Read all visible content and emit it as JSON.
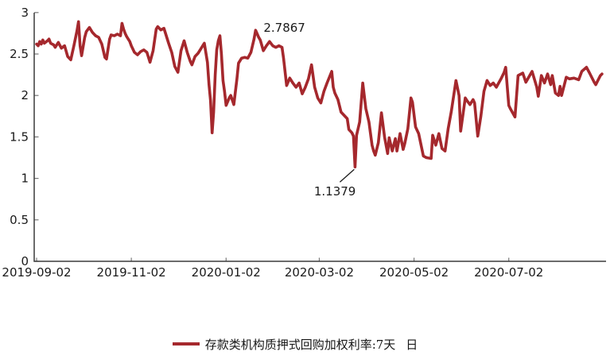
{
  "chart_data": {
    "type": "line",
    "title": "",
    "grid": false,
    "background": "#ffffff",
    "axis_color": "#3a3a3a",
    "tick_color": "#777777",
    "label_color": "#1a1a1a",
    "x_axis": {
      "tick_labels": [
        "2019-09-02",
        "2019-11-02",
        "2020-01-02",
        "2020-03-02",
        "2020-05-02",
        "2020-07-02"
      ],
      "tick_days": [
        0,
        61,
        122,
        182,
        243,
        304
      ],
      "range_days": [
        0,
        366
      ]
    },
    "y_axis": {
      "tick_labels": [
        "0",
        "0.5",
        "1",
        "1.5",
        "2",
        "2.5",
        "3"
      ],
      "ticks": [
        0,
        0.5,
        1,
        1.5,
        2,
        2.5,
        3
      ],
      "lim": [
        0,
        3
      ]
    },
    "series": [
      {
        "name": "存款类机构质押式回购加权利率:7天",
        "frequency": "日",
        "color": "#A5282D",
        "points": [
          [
            0,
            2.62
          ],
          [
            1,
            2.6
          ],
          [
            2,
            2.65
          ],
          [
            3,
            2.62
          ],
          [
            4,
            2.67
          ],
          [
            5,
            2.63
          ],
          [
            7,
            2.66
          ],
          [
            8,
            2.68
          ],
          [
            9,
            2.63
          ],
          [
            11,
            2.61
          ],
          [
            12,
            2.58
          ],
          [
            14,
            2.64
          ],
          [
            16,
            2.57
          ],
          [
            18,
            2.6
          ],
          [
            20,
            2.47
          ],
          [
            22,
            2.43
          ],
          [
            24,
            2.6
          ],
          [
            26,
            2.78
          ],
          [
            27,
            2.89
          ],
          [
            28,
            2.6
          ],
          [
            29,
            2.48
          ],
          [
            31,
            2.7
          ],
          [
            32,
            2.77
          ],
          [
            34,
            2.82
          ],
          [
            36,
            2.76
          ],
          [
            38,
            2.72
          ],
          [
            40,
            2.7
          ],
          [
            42,
            2.62
          ],
          [
            44,
            2.46
          ],
          [
            45,
            2.44
          ],
          [
            47,
            2.68
          ],
          [
            48,
            2.73
          ],
          [
            50,
            2.72
          ],
          [
            52,
            2.74
          ],
          [
            54,
            2.72
          ],
          [
            55,
            2.87
          ],
          [
            56,
            2.8
          ],
          [
            57,
            2.75
          ],
          [
            58,
            2.71
          ],
          [
            60,
            2.65
          ],
          [
            61,
            2.6
          ],
          [
            63,
            2.52
          ],
          [
            65,
            2.49
          ],
          [
            67,
            2.53
          ],
          [
            69,
            2.55
          ],
          [
            71,
            2.52
          ],
          [
            73,
            2.4
          ],
          [
            75,
            2.54
          ],
          [
            77,
            2.8
          ],
          [
            78,
            2.83
          ],
          [
            80,
            2.79
          ],
          [
            82,
            2.81
          ],
          [
            85,
            2.63
          ],
          [
            87,
            2.52
          ],
          [
            89,
            2.35
          ],
          [
            91,
            2.28
          ],
          [
            93,
            2.54
          ],
          [
            95,
            2.66
          ],
          [
            97,
            2.52
          ],
          [
            99,
            2.41
          ],
          [
            100,
            2.37
          ],
          [
            102,
            2.47
          ],
          [
            104,
            2.51
          ],
          [
            106,
            2.57
          ],
          [
            108,
            2.63
          ],
          [
            110,
            2.4
          ],
          [
            111,
            2.13
          ],
          [
            112,
            1.94
          ],
          [
            113,
            1.55
          ],
          [
            114,
            1.8
          ],
          [
            115,
            2.25
          ],
          [
            116,
            2.55
          ],
          [
            117,
            2.66
          ],
          [
            118,
            2.72
          ],
          [
            119,
            2.5
          ],
          [
            120,
            2.18
          ],
          [
            121,
            2.05
          ],
          [
            122,
            1.88
          ],
          [
            124,
            1.97
          ],
          [
            125,
            2.0
          ],
          [
            127,
            1.89
          ],
          [
            129,
            2.2
          ],
          [
            130,
            2.39
          ],
          [
            132,
            2.45
          ],
          [
            134,
            2.46
          ],
          [
            136,
            2.45
          ],
          [
            138,
            2.52
          ],
          [
            140,
            2.68
          ],
          [
            141,
            2.7867
          ],
          [
            143,
            2.7
          ],
          [
            144,
            2.67
          ],
          [
            146,
            2.54
          ],
          [
            148,
            2.6
          ],
          [
            150,
            2.65
          ],
          [
            152,
            2.6
          ],
          [
            154,
            2.58
          ],
          [
            156,
            2.6
          ],
          [
            158,
            2.58
          ],
          [
            159,
            2.45
          ],
          [
            161,
            2.12
          ],
          [
            163,
            2.21
          ],
          [
            165,
            2.15
          ],
          [
            167,
            2.1
          ],
          [
            169,
            2.15
          ],
          [
            171,
            2.02
          ],
          [
            173,
            2.1
          ],
          [
            175,
            2.2
          ],
          [
            177,
            2.37
          ],
          [
            179,
            2.1
          ],
          [
            181,
            1.97
          ],
          [
            183,
            1.91
          ],
          [
            185,
            2.05
          ],
          [
            187,
            2.15
          ],
          [
            190,
            2.29
          ],
          [
            191,
            2.1
          ],
          [
            192,
            2.03
          ],
          [
            194,
            1.95
          ],
          [
            196,
            1.8
          ],
          [
            200,
            1.72
          ],
          [
            201,
            1.59
          ],
          [
            203,
            1.55
          ],
          [
            204,
            1.51
          ],
          [
            205,
            1.1379
          ],
          [
            206,
            1.52
          ],
          [
            208,
            1.68
          ],
          [
            210,
            2.15
          ],
          [
            212,
            1.84
          ],
          [
            214,
            1.68
          ],
          [
            216,
            1.4
          ],
          [
            217,
            1.33
          ],
          [
            218,
            1.28
          ],
          [
            220,
            1.43
          ],
          [
            222,
            1.79
          ],
          [
            224,
            1.5
          ],
          [
            226,
            1.3
          ],
          [
            227,
            1.49
          ],
          [
            229,
            1.33
          ],
          [
            231,
            1.48
          ],
          [
            232,
            1.33
          ],
          [
            234,
            1.54
          ],
          [
            236,
            1.35
          ],
          [
            237,
            1.42
          ],
          [
            239,
            1.6
          ],
          [
            241,
            1.97
          ],
          [
            242,
            1.92
          ],
          [
            244,
            1.62
          ],
          [
            246,
            1.54
          ],
          [
            249,
            1.27
          ],
          [
            251,
            1.25
          ],
          [
            254,
            1.24
          ],
          [
            255,
            1.52
          ],
          [
            257,
            1.4
          ],
          [
            259,
            1.54
          ],
          [
            261,
            1.36
          ],
          [
            263,
            1.33
          ],
          [
            265,
            1.6
          ],
          [
            267,
            1.81
          ],
          [
            270,
            2.18
          ],
          [
            272,
            2.0
          ],
          [
            273,
            1.57
          ],
          [
            276,
            1.97
          ],
          [
            277,
            1.94
          ],
          [
            279,
            1.89
          ],
          [
            281,
            1.95
          ],
          [
            282,
            1.91
          ],
          [
            284,
            1.51
          ],
          [
            286,
            1.75
          ],
          [
            288,
            2.05
          ],
          [
            290,
            2.18
          ],
          [
            292,
            2.12
          ],
          [
            294,
            2.15
          ],
          [
            296,
            2.1
          ],
          [
            299,
            2.2
          ],
          [
            301,
            2.28
          ],
          [
            302,
            2.34
          ],
          [
            304,
            1.88
          ],
          [
            305,
            1.84
          ],
          [
            308,
            1.74
          ],
          [
            310,
            2.24
          ],
          [
            313,
            2.27
          ],
          [
            315,
            2.16
          ],
          [
            318,
            2.26
          ],
          [
            319,
            2.29
          ],
          [
            322,
            2.1
          ],
          [
            323,
            1.99
          ],
          [
            325,
            2.24
          ],
          [
            327,
            2.15
          ],
          [
            329,
            2.26
          ],
          [
            331,
            2.13
          ],
          [
            332,
            2.24
          ],
          [
            334,
            2.03
          ],
          [
            336,
            2.0
          ],
          [
            337,
            2.11
          ],
          [
            338,
            2.0
          ],
          [
            341,
            2.22
          ],
          [
            343,
            2.2
          ],
          [
            346,
            2.21
          ],
          [
            349,
            2.19
          ],
          [
            351,
            2.29
          ],
          [
            354,
            2.34
          ],
          [
            356,
            2.27
          ],
          [
            359,
            2.16
          ],
          [
            360,
            2.13
          ],
          [
            363,
            2.24
          ],
          [
            364,
            2.26
          ]
        ]
      }
    ],
    "annotations": [
      {
        "label": "2.7867",
        "day": 141,
        "value": 2.7867,
        "placement": "above-right"
      },
      {
        "label": "1.1379",
        "day": 205,
        "value": 1.1379,
        "placement": "below-left-leader"
      }
    ],
    "legend": {
      "position": "bottom-center",
      "label": "存款类机构质押式回购加权利率:7天",
      "suffix": "日"
    }
  }
}
